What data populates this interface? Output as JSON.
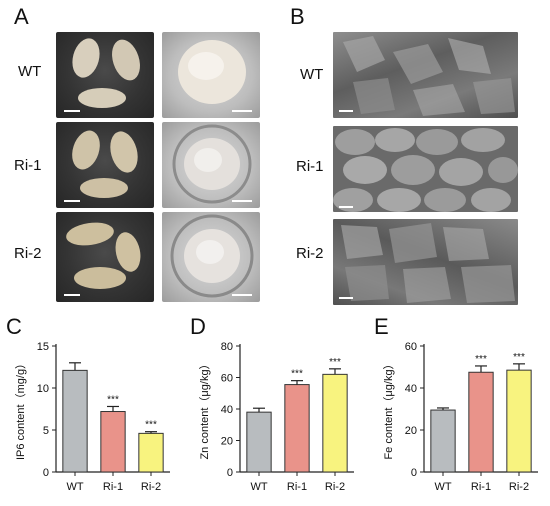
{
  "panels": {
    "A": {
      "letter": "A",
      "rows": [
        "WT",
        "Ri-1",
        "Ri-2"
      ]
    },
    "B": {
      "letter": "B",
      "rows": [
        "WT",
        "Ri-1",
        "Ri-2"
      ]
    },
    "C": {
      "letter": "C"
    },
    "D": {
      "letter": "D"
    },
    "E": {
      "letter": "E"
    }
  },
  "colors": {
    "WT": "#b8bcbf",
    "Ri-1": "#e9938a",
    "Ri-2": "#f8f37f"
  },
  "chart_data": [
    {
      "type": "bar",
      "panel": "C",
      "categories": [
        "WT",
        "Ri-1",
        "Ri-2"
      ],
      "values": [
        12.1,
        7.2,
        4.6
      ],
      "errors": [
        0.9,
        0.6,
        0.2
      ],
      "annotations": [
        "",
        "***",
        "***"
      ],
      "ylabel": "IP6 content（mg/g）",
      "ylim": [
        0,
        15
      ],
      "yticks": [
        0,
        5,
        10,
        15
      ],
      "xlabel": "",
      "grid": false
    },
    {
      "type": "bar",
      "panel": "D",
      "categories": [
        "WT",
        "Ri-1",
        "Ri-2"
      ],
      "values": [
        38,
        55.5,
        62
      ],
      "errors": [
        2.5,
        2.5,
        3.5
      ],
      "annotations": [
        "",
        "***",
        "***"
      ],
      "ylabel": "Zn content（μg/kg）",
      "ylim": [
        0,
        80
      ],
      "yticks": [
        0,
        20,
        40,
        60,
        80
      ],
      "xlabel": "",
      "grid": false
    },
    {
      "type": "bar",
      "panel": "E",
      "categories": [
        "WT",
        "Ri-1",
        "Ri-2"
      ],
      "values": [
        29.5,
        47.5,
        48.5
      ],
      "errors": [
        1.0,
        3.0,
        3.0
      ],
      "annotations": [
        "",
        "***",
        "***"
      ],
      "ylabel": "Fe content（μg/kg）",
      "ylim": [
        0,
        60
      ],
      "yticks": [
        0,
        20,
        40,
        60
      ],
      "xlabel": "",
      "grid": false
    }
  ]
}
